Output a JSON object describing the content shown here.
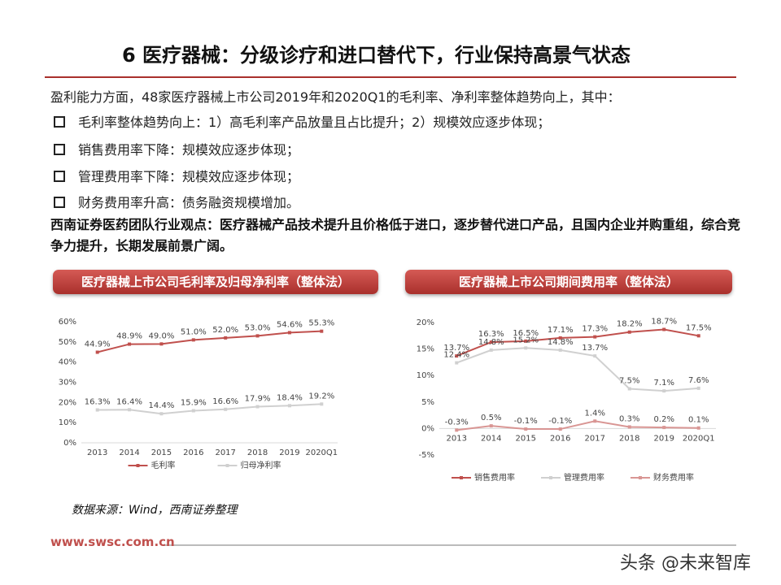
{
  "slide": {
    "title": "6 医疗器械：分级诊疗和进口替代下，行业保持高景气状态",
    "intro": "盈利能力方面，48家医疗器械上市公司2019年和2020Q1的毛利率、净利率整体趋势向上，其中：",
    "bullets": [
      "毛利率整体趋势向上：1）高毛利率产品放量且占比提升；2）规模效应逐步体现；",
      "销售费用率下降：规模效应逐步体现；",
      "管理费用率下降：规模效应逐步体现；",
      "财务费用率升高：债务融资规模增加。"
    ],
    "conclusion": "西南证券医药团队行业观点：医疗器械产品技术提升且价格低于进口，逐步替代进口产品，且国内企业并购重组，综合竞争力提升，长期发展前景广阔。",
    "source": "数据来源：Wind，西南证券整理",
    "url": "www.swsc.com.cn",
    "watermark": "头条 @未来智库"
  },
  "chart_data": [
    {
      "type": "line",
      "title": "医疗器械上市公司毛利率及归母净利率（整体法）",
      "categories": [
        "2013",
        "2014",
        "2015",
        "2016",
        "2017",
        "2018",
        "2019",
        "2020Q1"
      ],
      "series": [
        {
          "name": "毛利率",
          "color": "#c0504d",
          "values": [
            44.9,
            48.9,
            49.0,
            51.0,
            52.0,
            53.0,
            54.6,
            55.3
          ],
          "value_labels": [
            "44.9%",
            "48.9%",
            "49.0%",
            "51.0%",
            "52.0%",
            "53.0%",
            "54.6%",
            "55.3%"
          ]
        },
        {
          "name": "归母净利率",
          "color": "#d0d0d0",
          "values": [
            16.3,
            16.4,
            14.4,
            15.9,
            16.6,
            17.9,
            18.4,
            19.2
          ],
          "value_labels": [
            "16.3%",
            "16.4%",
            "14.4%",
            "15.9%",
            "16.6%",
            "17.9%",
            "18.4%",
            "19.2%"
          ]
        }
      ],
      "ylim": [
        0,
        60
      ],
      "yticks": [
        {
          "value": 0,
          "label": "0%"
        },
        {
          "value": 10,
          "label": "10%"
        },
        {
          "value": 20,
          "label": "20%"
        },
        {
          "value": 30,
          "label": "30%"
        },
        {
          "value": 40,
          "label": "40%"
        },
        {
          "value": 50,
          "label": "50%"
        },
        {
          "value": 60,
          "label": "60%"
        }
      ],
      "grid": false,
      "legend": "bottom"
    },
    {
      "type": "line",
      "title": "医疗器械上市公司期间费用率（整体法）",
      "categories": [
        "2013",
        "2014",
        "2015",
        "2016",
        "2017",
        "2018",
        "2019",
        "2020Q1"
      ],
      "series": [
        {
          "name": "销售费用率",
          "color": "#c0504d",
          "values": [
            13.7,
            16.3,
            16.5,
            17.1,
            17.3,
            18.2,
            18.7,
            17.5
          ],
          "value_labels": [
            "13.7%",
            "16.3%",
            "16.5%",
            "17.1%",
            "17.3%",
            "18.2%",
            "18.7%",
            "17.5%"
          ]
        },
        {
          "name": "管理费用率",
          "color": "#d0d0d0",
          "values": [
            12.4,
            14.8,
            15.2,
            14.8,
            13.7,
            7.5,
            7.1,
            7.6
          ],
          "value_labels": [
            "12.4%",
            "14.8%",
            "15.2%",
            "14.8%",
            "13.7%",
            "7.5%",
            "7.1%",
            "7.6%"
          ]
        },
        {
          "name": "财务费用率",
          "color": "#d99694",
          "values": [
            -0.3,
            0.5,
            -0.1,
            -0.1,
            1.4,
            0.3,
            0.2,
            0.1
          ],
          "value_labels": [
            "-0.3%",
            "0.5%",
            "-0.1%",
            "-0.1%",
            "1.4%",
            "0.3%",
            "0.2%",
            "0.1%"
          ]
        }
      ],
      "ylim": [
        -5,
        20
      ],
      "yticks": [
        {
          "value": -5,
          "label": "-5%"
        },
        {
          "value": 0,
          "label": "0%"
        },
        {
          "value": 5,
          "label": "5%"
        },
        {
          "value": 10,
          "label": "10%"
        },
        {
          "value": 15,
          "label": "15%"
        },
        {
          "value": 20,
          "label": "20%"
        }
      ],
      "grid": false,
      "legend": "bottom"
    }
  ]
}
